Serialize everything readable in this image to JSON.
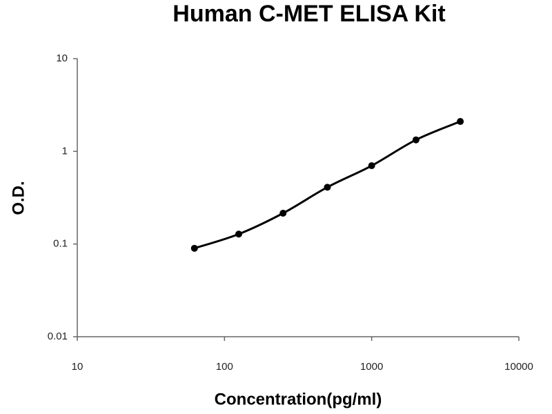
{
  "chart_data": {
    "type": "scatter",
    "title": "Human C-MET ELISA Kit",
    "x_label": "Concentration(pg/ml)",
    "y_label": "O.D.",
    "x": [
      62.5,
      125,
      250,
      500,
      1000,
      2000,
      4000
    ],
    "values": [
      0.09,
      0.128,
      0.215,
      0.41,
      0.7,
      1.33,
      2.1
    ],
    "color": "#000000",
    "xscale": "log",
    "yscale": "log",
    "trendline": true,
    "xlim": [
      10,
      10000
    ],
    "xticks": [
      10,
      100,
      1000,
      10000
    ],
    "ylim": [
      0.01,
      10
    ],
    "yticks": [
      0.01,
      0.1,
      1,
      10
    ]
  }
}
